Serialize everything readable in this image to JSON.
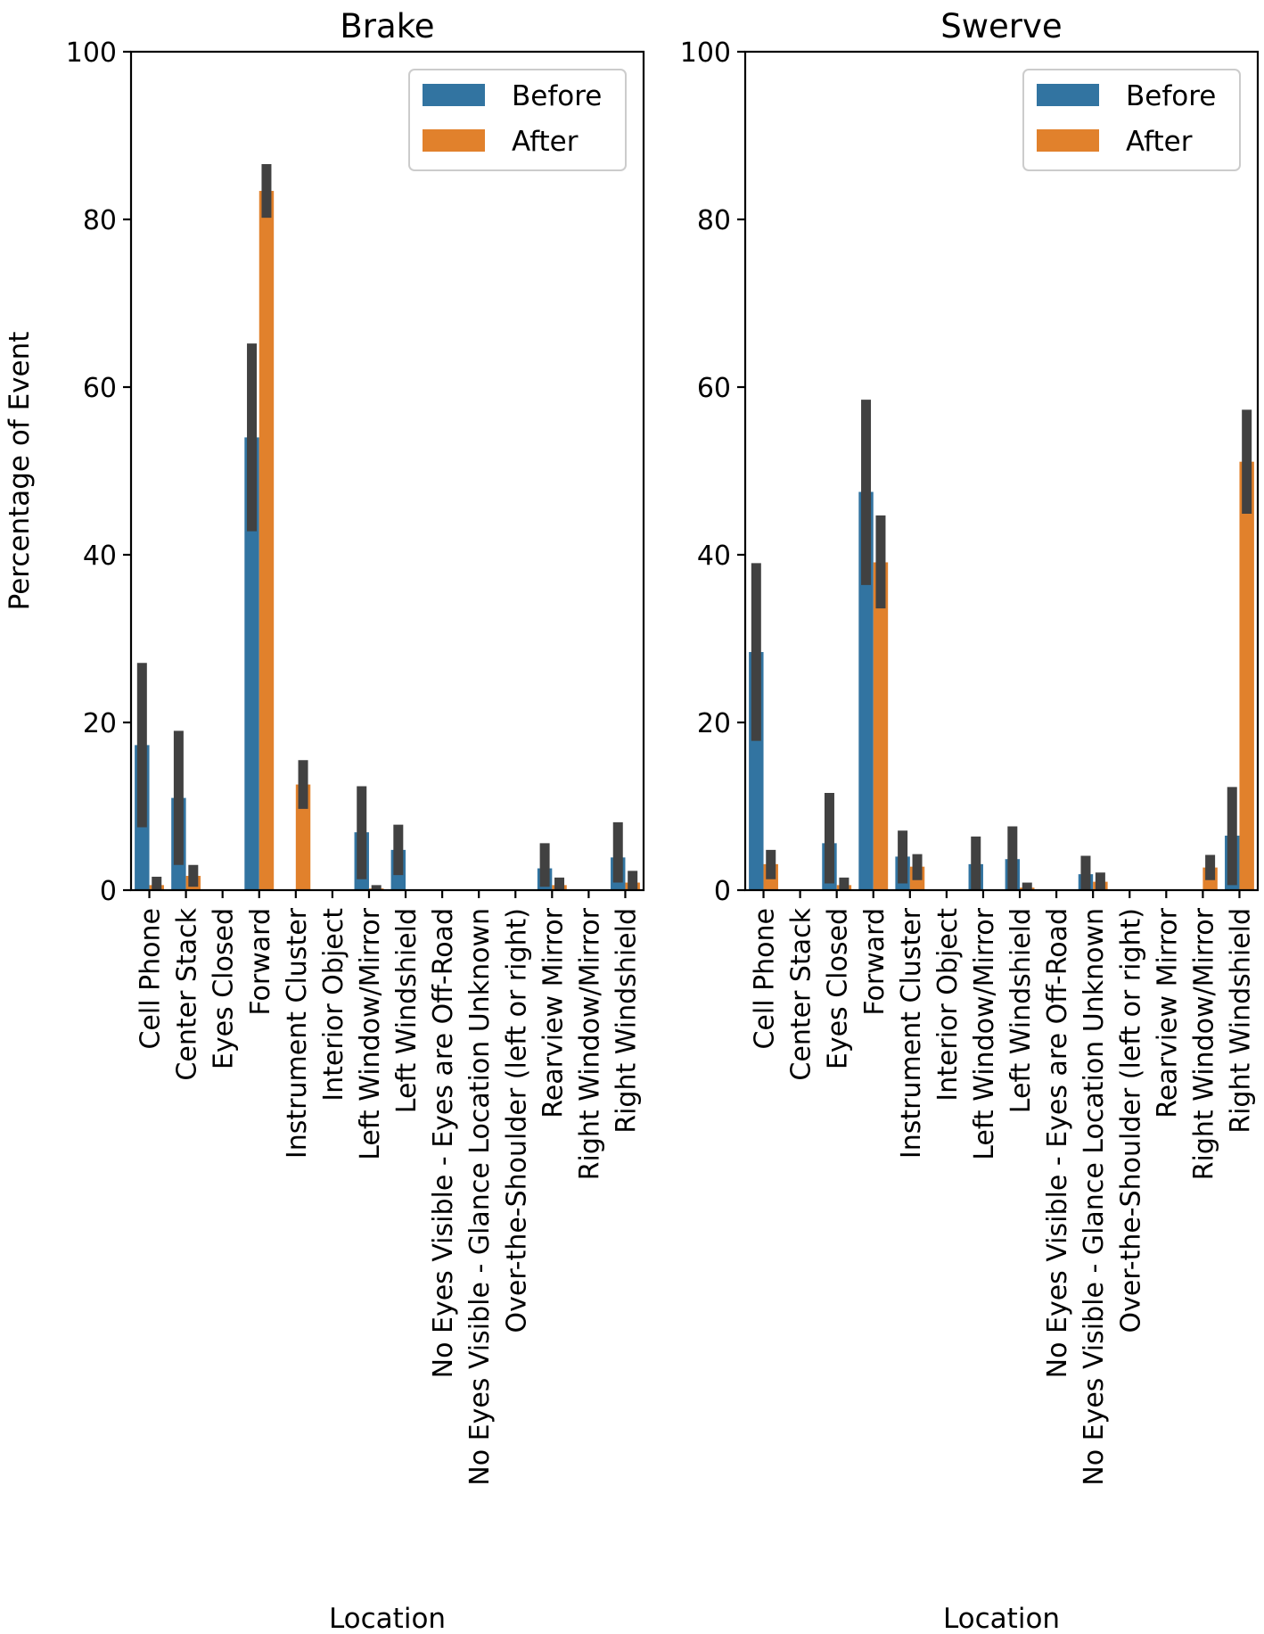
{
  "chart_data": [
    {
      "type": "bar",
      "title": "Brake",
      "xlabel": "Location",
      "ylabel": "Percentage of Event",
      "ylim": [
        0,
        100
      ],
      "yticks": [
        "0",
        "20",
        "40",
        "60",
        "80",
        "100"
      ],
      "grid": false,
      "legend_position": "top-right",
      "categories": [
        "Cell Phone",
        "Center Stack",
        "Eyes Closed",
        "Forward",
        "Instrument Cluster",
        "Interior Object",
        "Left Window/Mirror",
        "Left Windshield",
        "No Eyes Visible - Eyes are Off-Road",
        "No Eyes Visible - Glance Location Unknown",
        "Over-the-Shoulder (left or right)",
        "Rearview Mirror",
        "Right Window/Mirror",
        "Right Windshield"
      ],
      "series": [
        {
          "name": "Before",
          "color": "#3274a1",
          "values": [
            17.3,
            11.0,
            0,
            54.0,
            0,
            0,
            6.9,
            4.8,
            0,
            0,
            0,
            2.6,
            0,
            3.9
          ],
          "ci_low": [
            7.5,
            3.0,
            0,
            42.8,
            0,
            0,
            1.3,
            1.8,
            0,
            0,
            0,
            0.4,
            0,
            0.9
          ],
          "ci_high": [
            27.1,
            19.0,
            0,
            65.2,
            0,
            0,
            12.4,
            7.8,
            0,
            0,
            0,
            5.6,
            0,
            8.1
          ]
        },
        {
          "name": "After",
          "color": "#e1812c",
          "values": [
            0.6,
            1.7,
            0,
            83.4,
            12.6,
            0,
            0.2,
            0,
            0,
            0,
            0,
            0.6,
            0,
            0.9
          ],
          "ci_low": [
            0,
            0.4,
            0,
            80.2,
            9.7,
            0,
            0,
            0,
            0,
            0,
            0,
            0,
            0,
            0
          ],
          "ci_high": [
            1.6,
            3.0,
            0,
            86.6,
            15.5,
            0,
            0.6,
            0,
            0,
            0,
            0,
            1.5,
            0,
            2.3
          ]
        }
      ]
    },
    {
      "type": "bar",
      "title": "Swerve",
      "xlabel": "Location",
      "ylabel": "",
      "ylim": [
        0,
        100
      ],
      "yticks": [
        "0",
        "20",
        "40",
        "60",
        "80",
        "100"
      ],
      "grid": false,
      "legend_position": "top-right",
      "categories": [
        "Cell Phone",
        "Center Stack",
        "Eyes Closed",
        "Forward",
        "Instrument Cluster",
        "Interior Object",
        "Left Window/Mirror",
        "Left Windshield",
        "No Eyes Visible - Eyes are Off-Road",
        "No Eyes Visible - Glance Location Unknown",
        "Over-the-Shoulder (left or right)",
        "Rearview Mirror",
        "Right Window/Mirror",
        "Right Windshield"
      ],
      "series": [
        {
          "name": "Before",
          "color": "#3274a1",
          "values": [
            28.4,
            0,
            5.6,
            47.5,
            4.0,
            0,
            3.1,
            3.7,
            0,
            1.9,
            0,
            0,
            0,
            6.5
          ],
          "ci_low": [
            17.8,
            0,
            0.8,
            36.4,
            0.8,
            0,
            0,
            0,
            0,
            0,
            0,
            0,
            0,
            0.6
          ],
          "ci_high": [
            39.0,
            0,
            11.6,
            58.5,
            7.1,
            0,
            6.4,
            7.6,
            0,
            4.1,
            0,
            0,
            0,
            12.3
          ]
        },
        {
          "name": "After",
          "color": "#e1812c",
          "values": [
            3.1,
            0,
            0.6,
            39.1,
            2.8,
            0,
            0,
            0.3,
            0,
            1.0,
            0,
            0,
            2.7,
            51.1
          ],
          "ci_low": [
            1.3,
            0,
            0,
            33.6,
            1.2,
            0,
            0,
            0,
            0,
            0,
            0,
            0,
            1.2,
            44.9
          ],
          "ci_high": [
            4.8,
            0,
            1.5,
            44.7,
            4.3,
            0,
            0,
            0.9,
            0,
            2.1,
            0,
            0,
            4.2,
            57.3
          ]
        }
      ]
    }
  ]
}
